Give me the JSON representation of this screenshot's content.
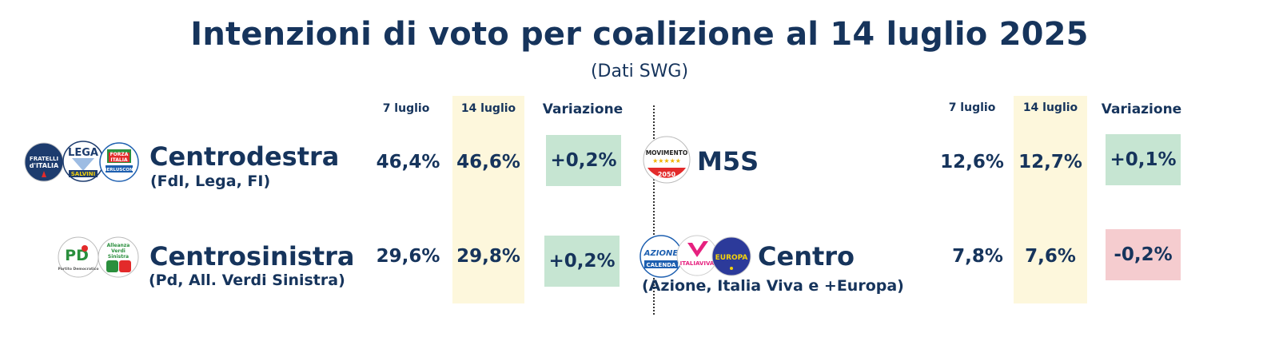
{
  "title": "Intenzioni di voto per coalizione al 14 luglio 2025",
  "subtitle": "(Dati SWG)",
  "columns": {
    "prev": "7 luglio",
    "curr": "14 luglio",
    "change": "Variazione"
  },
  "colors": {
    "text": "#16345c",
    "highlight": "#fdf7dc",
    "positive": "#c6e5d2",
    "negative": "#f5cccf"
  },
  "chart_data": {
    "type": "table",
    "title": "Intenzioni di voto per coalizione al 14 luglio 2025",
    "subtitle": "(Dati SWG)",
    "columns": [
      "7 luglio",
      "14 luglio",
      "Variazione"
    ],
    "rows": [
      {
        "name": "Centrodestra",
        "sub": "(FdI, Lega, FI)",
        "prev": "46,4%",
        "curr": "46,6%",
        "change": "+0,2%",
        "prev_value": 46.4,
        "curr_value": 46.6,
        "change_value": 0.2
      },
      {
        "name": "Centrosinistra",
        "sub": "(Pd, All. Verdi Sinistra)",
        "prev": "29,6%",
        "curr": "29,8%",
        "change": "+0,2%",
        "prev_value": 29.6,
        "curr_value": 29.8,
        "change_value": 0.2
      },
      {
        "name": "M5S",
        "sub": "",
        "prev": "12,6%",
        "curr": "12,7%",
        "change": "+0,1%",
        "prev_value": 12.6,
        "curr_value": 12.7,
        "change_value": 0.1
      },
      {
        "name": "Centro",
        "sub": "(Azione, Italia Viva e +Europa)",
        "prev": "7,8%",
        "curr": "7,6%",
        "change": "-0,2%",
        "prev_value": 7.8,
        "curr_value": 7.6,
        "change_value": -0.2
      }
    ]
  },
  "logos": {
    "fdi": {
      "icon": "fratelli-ditalia-logo",
      "lines": [
        "FRATELLI",
        "d'ITALIA"
      ]
    },
    "lega": {
      "icon": "lega-logo",
      "lines": [
        "LEGA",
        "SALVINI"
      ]
    },
    "fi": {
      "icon": "forza-italia-logo",
      "lines": [
        "FORZA",
        "ITALIA",
        "BERLUSCONI"
      ]
    },
    "pd": {
      "icon": "partito-democratico-logo",
      "lines": [
        "PD",
        "Partito Democratico"
      ]
    },
    "avs": {
      "icon": "alleanza-verdi-sinistra-logo",
      "lines": [
        "Alleanza",
        "Verdi",
        "Sinistra"
      ]
    },
    "m5s": {
      "icon": "movimento-5-stelle-logo",
      "lines": [
        "MOVIMENTO",
        "★★★★★",
        "2050"
      ]
    },
    "azione": {
      "icon": "azione-logo",
      "lines": [
        "AZIONE",
        "CALENDA"
      ]
    },
    "iv": {
      "icon": "italia-viva-logo",
      "lines": [
        "ITALIAVIVA"
      ]
    },
    "europa": {
      "icon": "piu-europa-logo",
      "lines": [
        "EUROPA"
      ]
    }
  }
}
